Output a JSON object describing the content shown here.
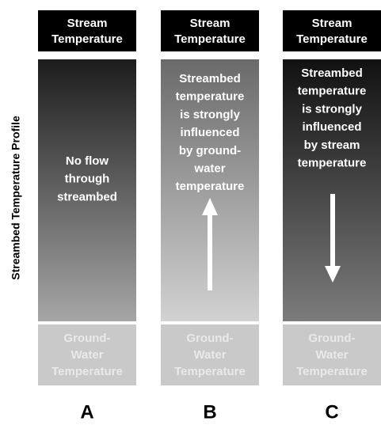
{
  "y_axis_label": "Streambed Temperature Profile",
  "columns": [
    {
      "top_label": [
        "Stream",
        "Temperature"
      ],
      "body": [
        "No flow",
        "through",
        "streambed"
      ],
      "bottom_label": [
        "Ground-",
        "Water",
        "Temperature"
      ],
      "letter": "A"
    },
    {
      "top_label": [
        "Stream",
        "Temperature"
      ],
      "body": [
        "Streambed",
        "temperature",
        "is strongly",
        "influenced",
        "by ground-",
        "water",
        "temperature"
      ],
      "bottom_label": [
        "Ground-",
        "Water",
        "Temperature"
      ],
      "letter": "B"
    },
    {
      "top_label": [
        "Stream",
        "Temperature"
      ],
      "body": [
        "Streambed",
        "temperature",
        "is strongly",
        "influenced",
        "by stream",
        "temperature"
      ],
      "bottom_label": [
        "Ground-",
        "Water",
        "Temperature"
      ],
      "letter": "C"
    }
  ]
}
